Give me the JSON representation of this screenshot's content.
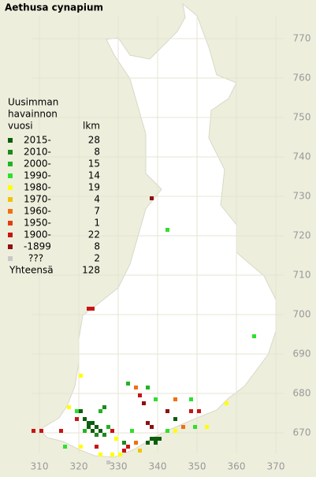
{
  "title": "Aethusa cynapium",
  "legend": {
    "heading": [
      "Uusimman",
      "havainnon"
    ],
    "period_header": "vuosi",
    "count_header": "lkm",
    "rows": [
      {
        "label": "2015-",
        "count": 28,
        "color": "#0b5e0b"
      },
      {
        "label": "2010-",
        "count": 8,
        "color": "#1c8a1c"
      },
      {
        "label": "2000-",
        "count": 15,
        "color": "#22b422"
      },
      {
        "label": "1990-",
        "count": 14,
        "color": "#2ee02e"
      },
      {
        "label": "1980-",
        "count": 19,
        "color": "#ffff00"
      },
      {
        "label": "1970-",
        "count": 4,
        "color": "#f2c200"
      },
      {
        "label": "1960-",
        "count": 7,
        "color": "#f07010"
      },
      {
        "label": "1950-",
        "count": 1,
        "color": "#e04010"
      },
      {
        "label": "1900-",
        "count": 22,
        "color": "#c81414"
      },
      {
        "label": "-1899",
        "count": 8,
        "color": "#8e1010"
      },
      {
        "label": "???",
        "count": 2,
        "color": "#c8c8c8"
      }
    ],
    "total_label": "Yhteensä",
    "total": 128
  },
  "xticks": [
    310,
    320,
    330,
    340,
    350,
    360,
    370
  ],
  "yticks": [
    670,
    680,
    690,
    700,
    710,
    720,
    730,
    740,
    750,
    760,
    770
  ],
  "squares": [
    {
      "x": 338,
      "y": 729,
      "period": 9
    },
    {
      "x": 342,
      "y": 721,
      "period": 3
    },
    {
      "x": 322,
      "y": 701,
      "period": 8
    },
    {
      "x": 323,
      "y": 701,
      "period": 8
    },
    {
      "x": 364,
      "y": 694,
      "period": 3
    },
    {
      "x": 320,
      "y": 684,
      "period": 4
    },
    {
      "x": 332,
      "y": 682,
      "period": 2
    },
    {
      "x": 334,
      "y": 681,
      "period": 6
    },
    {
      "x": 337,
      "y": 681,
      "period": 2
    },
    {
      "x": 335,
      "y": 679,
      "period": 8
    },
    {
      "x": 336,
      "y": 677,
      "period": 9
    },
    {
      "x": 339,
      "y": 678,
      "period": 3
    },
    {
      "x": 344,
      "y": 678,
      "period": 6
    },
    {
      "x": 348,
      "y": 678,
      "period": 3
    },
    {
      "x": 357,
      "y": 677,
      "period": 4
    },
    {
      "x": 317,
      "y": 676,
      "period": 4
    },
    {
      "x": 319,
      "y": 675,
      "period": 3
    },
    {
      "x": 320,
      "y": 675,
      "period": 0
    },
    {
      "x": 325,
      "y": 675,
      "period": 2
    },
    {
      "x": 342,
      "y": 675,
      "period": 9
    },
    {
      "x": 348,
      "y": 675,
      "period": 8
    },
    {
      "x": 350,
      "y": 675,
      "period": 8
    },
    {
      "x": 319,
      "y": 673,
      "period": 8
    },
    {
      "x": 344,
      "y": 673,
      "period": 0
    },
    {
      "x": 321,
      "y": 673,
      "period": 0
    },
    {
      "x": 322,
      "y": 672,
      "period": 0
    },
    {
      "x": 323,
      "y": 672,
      "period": 0
    },
    {
      "x": 324,
      "y": 671,
      "period": 0
    },
    {
      "x": 322,
      "y": 671,
      "period": 0
    },
    {
      "x": 323,
      "y": 670,
      "period": 0
    },
    {
      "x": 325,
      "y": 670,
      "period": 0
    },
    {
      "x": 324,
      "y": 669,
      "period": 1
    },
    {
      "x": 326,
      "y": 669,
      "period": 1
    },
    {
      "x": 321,
      "y": 670,
      "period": 2
    },
    {
      "x": 327,
      "y": 671,
      "period": 2
    },
    {
      "x": 308,
      "y": 670,
      "period": 8
    },
    {
      "x": 310,
      "y": 670,
      "period": 8
    },
    {
      "x": 315,
      "y": 670,
      "period": 8
    },
    {
      "x": 328,
      "y": 670,
      "period": 8
    },
    {
      "x": 329,
      "y": 668,
      "period": 4
    },
    {
      "x": 333,
      "y": 670,
      "period": 3
    },
    {
      "x": 337,
      "y": 672,
      "period": 9
    },
    {
      "x": 338,
      "y": 671,
      "period": 9
    },
    {
      "x": 339,
      "y": 668,
      "period": 0
    },
    {
      "x": 338,
      "y": 668,
      "period": 0
    },
    {
      "x": 340,
      "y": 668,
      "period": 0
    },
    {
      "x": 339,
      "y": 667,
      "period": 0
    },
    {
      "x": 337,
      "y": 667,
      "period": 0
    },
    {
      "x": 342,
      "y": 670,
      "period": 3
    },
    {
      "x": 346,
      "y": 671,
      "period": 6
    },
    {
      "x": 349,
      "y": 671,
      "period": 3
    },
    {
      "x": 352,
      "y": 671,
      "period": 4
    },
    {
      "x": 344,
      "y": 670,
      "period": 4
    },
    {
      "x": 316,
      "y": 666,
      "period": 3
    },
    {
      "x": 320,
      "y": 666,
      "period": 4
    },
    {
      "x": 324,
      "y": 666,
      "period": 8
    },
    {
      "x": 325,
      "y": 664,
      "period": 4
    },
    {
      "x": 328,
      "y": 664,
      "period": 4
    },
    {
      "x": 330,
      "y": 664,
      "period": 4
    },
    {
      "x": 331,
      "y": 665,
      "period": 8
    },
    {
      "x": 332,
      "y": 666,
      "period": 8
    },
    {
      "x": 334,
      "y": 667,
      "period": 6
    },
    {
      "x": 327,
      "y": 662,
      "period": 10
    },
    {
      "x": 335,
      "y": 665,
      "period": 5
    },
    {
      "x": 326,
      "y": 676,
      "period": 1
    },
    {
      "x": 331,
      "y": 667,
      "period": 1
    }
  ]
}
